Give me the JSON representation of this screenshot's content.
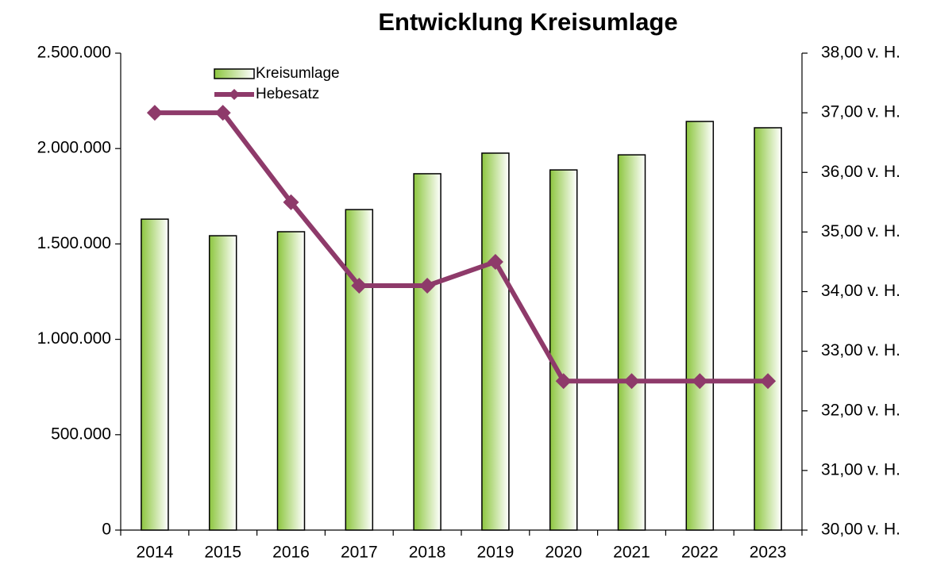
{
  "chart_data": {
    "type": "bar",
    "title": "Entwicklung Kreisumlage",
    "categories": [
      "2014",
      "2015",
      "2016",
      "2017",
      "2018",
      "2019",
      "2020",
      "2021",
      "2022",
      "2023"
    ],
    "series": [
      {
        "name": "Kreisumlage",
        "type": "bar",
        "color": "#8dc63f",
        "values": [
          1630000,
          1543000,
          1564000,
          1680000,
          1868000,
          1976000,
          1888000,
          1967000,
          2142000,
          2109000
        ]
      },
      {
        "name": "Hebesatz",
        "type": "line",
        "axis": "y2",
        "color": "#8e3a6a",
        "values": [
          37.0,
          37.0,
          35.5,
          34.1,
          34.1,
          34.5,
          32.5,
          32.5,
          32.5,
          32.5
        ]
      }
    ],
    "ylim": [
      0,
      2500000
    ],
    "yticks": [
      0,
      {
        "value": 500000,
        "label": "500.000"
      },
      {
        "value": 1000000,
        "label": "1.000.000"
      },
      {
        "value": 1500000,
        "label": "1.500.000"
      },
      {
        "value": 2000000,
        "label": "2.000.000"
      },
      {
        "value": 2500000,
        "label": "2.500.000"
      }
    ],
    "y2lim": [
      30,
      38
    ],
    "y2ticks": [
      {
        "value": 30,
        "label": "30,00 v. H."
      },
      {
        "value": 31,
        "label": "31,00 v. H."
      },
      {
        "value": 32,
        "label": "32,00 v. H."
      },
      {
        "value": 33,
        "label": "33,00 v. H."
      },
      {
        "value": 34,
        "label": "34,00 v. H."
      },
      {
        "value": 35,
        "label": "35,00 v. H."
      },
      {
        "value": 36,
        "label": "36,00 v. H."
      },
      {
        "value": 37,
        "label": "37,00 v. H."
      },
      {
        "value": 38,
        "label": "38,00 v. H."
      }
    ],
    "grid": false,
    "legend": "top-left"
  }
}
